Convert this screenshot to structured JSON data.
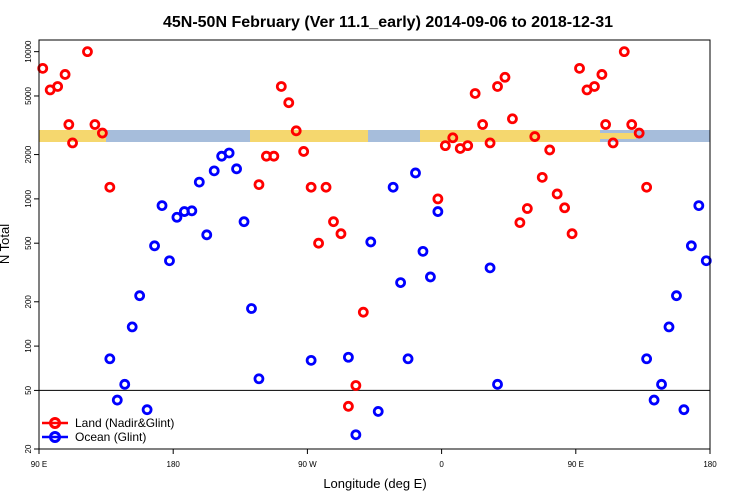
{
  "chart_data": {
    "type": "scatter",
    "title": "45N-50N February (Ver 11.1_early)   2014-09-06 to 2018-12-31",
    "xlabel": "Longitude (deg E)",
    "ylabel": "N Total",
    "yscale": "log",
    "xlim": [
      90,
      540
    ],
    "ylim": [
      20,
      12000
    ],
    "x_ticks": [
      {
        "value": 90,
        "label": "90 E"
      },
      {
        "value": 180,
        "label": "180"
      },
      {
        "value": 270,
        "label": "90 W"
      },
      {
        "value": 360,
        "label": "0"
      },
      {
        "value": 450,
        "label": "90 E"
      },
      {
        "value": 540,
        "label": "180"
      }
    ],
    "y_ticks": [
      {
        "value": 20,
        "label": "20"
      },
      {
        "value": 50,
        "label": "50"
      },
      {
        "value": 100,
        "label": "100"
      },
      {
        "value": 200,
        "label": "200"
      },
      {
        "value": 500,
        "label": "500"
      },
      {
        "value": 1000,
        "label": "1000"
      },
      {
        "value": 2000,
        "label": "2000"
      },
      {
        "value": 5000,
        "label": "5000"
      },
      {
        "value": 10000,
        "label": "10000"
      }
    ],
    "reference_line_y": 50,
    "legend": {
      "position": "bottom-left",
      "entries": [
        "Land (Nadir&Glint)",
        "Ocean (Glint)"
      ]
    },
    "series": [
      {
        "name": "Land (Nadir&Glint)",
        "color": "#ff0000",
        "points": [
          [
            92.5,
            7700
          ],
          [
            97.5,
            5500
          ],
          [
            102.5,
            5800
          ],
          [
            107.5,
            7000
          ],
          [
            110,
            3200
          ],
          [
            112.5,
            2400
          ],
          [
            122.5,
            10000
          ],
          [
            127.5,
            3200
          ],
          [
            132.5,
            2800
          ],
          [
            137.5,
            1200
          ],
          [
            237.5,
            1250
          ],
          [
            242.5,
            1950
          ],
          [
            247.5,
            1950
          ],
          [
            252.5,
            5800
          ],
          [
            257.5,
            4500
          ],
          [
            262.5,
            2900
          ],
          [
            267.5,
            2100
          ],
          [
            272.5,
            1200
          ],
          [
            277.5,
            500
          ],
          [
            282.5,
            1200
          ],
          [
            287.5,
            700
          ],
          [
            292.5,
            580
          ],
          [
            297.5,
            39
          ],
          [
            302.5,
            54
          ],
          [
            307.5,
            170
          ],
          [
            357.5,
            1000
          ],
          [
            362.5,
            2300
          ],
          [
            367.5,
            2600
          ],
          [
            372.5,
            2200
          ],
          [
            377.5,
            2300
          ],
          [
            382.5,
            5200
          ],
          [
            387.5,
            3200
          ],
          [
            392.5,
            2400
          ],
          [
            397.5,
            5800
          ],
          [
            402.5,
            6700
          ],
          [
            407.5,
            3500
          ],
          [
            412.5,
            690
          ],
          [
            417.5,
            860
          ],
          [
            422.5,
            2650
          ],
          [
            427.5,
            1400
          ],
          [
            432.5,
            2150
          ],
          [
            437.5,
            1080
          ],
          [
            442.5,
            870
          ],
          [
            447.5,
            580
          ],
          [
            452.5,
            7700
          ],
          [
            457.5,
            5500
          ],
          [
            462.5,
            5800
          ],
          [
            467.5,
            7000
          ],
          [
            470,
            3200
          ],
          [
            475,
            2400
          ],
          [
            482.5,
            10000
          ],
          [
            487.5,
            3200
          ],
          [
            492.5,
            2800
          ],
          [
            497.5,
            1200
          ]
        ]
      },
      {
        "name": "Ocean (Glint)",
        "color": "#0000ff",
        "points": [
          [
            137.5,
            82
          ],
          [
            142.5,
            43
          ],
          [
            147.5,
            55
          ],
          [
            152.5,
            135
          ],
          [
            157.5,
            220
          ],
          [
            162.5,
            37
          ],
          [
            167.5,
            480
          ],
          [
            172.5,
            900
          ],
          [
            177.5,
            380
          ],
          [
            182.5,
            750
          ],
          [
            187.5,
            820
          ],
          [
            192.5,
            830
          ],
          [
            197.5,
            1300
          ],
          [
            202.5,
            570
          ],
          [
            207.5,
            1550
          ],
          [
            212.5,
            1950
          ],
          [
            217.5,
            2050
          ],
          [
            222.5,
            1600
          ],
          [
            227.5,
            700
          ],
          [
            232.5,
            180
          ],
          [
            237.5,
            60
          ],
          [
            272.5,
            80
          ],
          [
            297.5,
            84
          ],
          [
            302.5,
            25
          ],
          [
            312.5,
            510
          ],
          [
            317.5,
            36
          ],
          [
            327.5,
            1200
          ],
          [
            332.5,
            270
          ],
          [
            337.5,
            82
          ],
          [
            342.5,
            1500
          ],
          [
            347.5,
            440
          ],
          [
            352.5,
            295
          ],
          [
            357.5,
            820
          ],
          [
            392.5,
            340
          ],
          [
            397.5,
            55
          ],
          [
            497.5,
            82
          ],
          [
            502.5,
            43
          ],
          [
            507.5,
            55
          ],
          [
            512.5,
            135
          ],
          [
            517.5,
            220
          ],
          [
            522.5,
            37
          ],
          [
            527.5,
            480
          ],
          [
            532.5,
            900
          ],
          [
            537.5,
            380
          ]
        ]
      }
    ]
  }
}
